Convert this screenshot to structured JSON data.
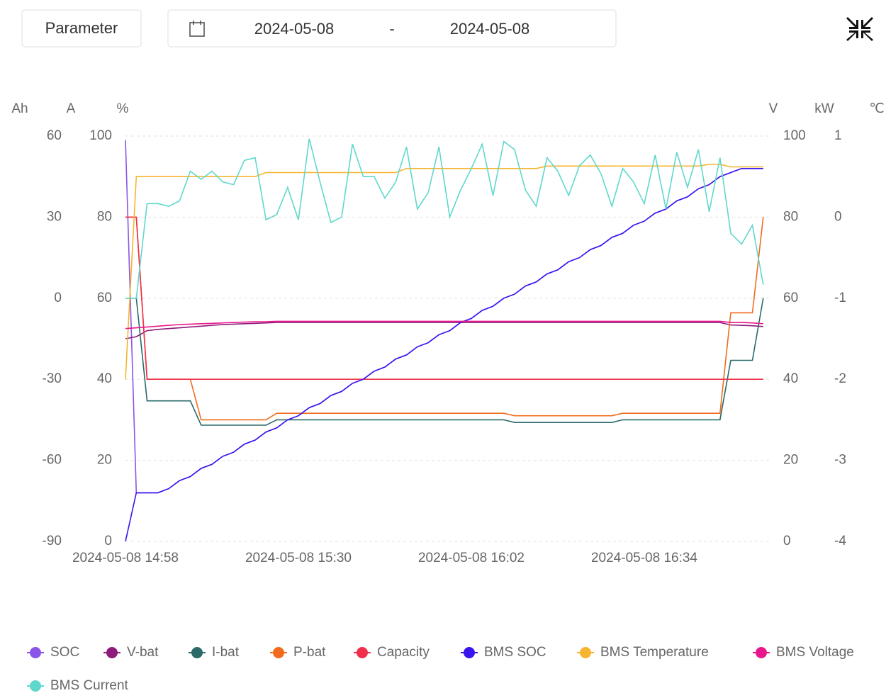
{
  "controls": {
    "button": "Parameter",
    "date_start": "2024-05-08",
    "date_separator": "-",
    "date_end": "2024-05-08"
  },
  "chart_data": {
    "type": "line",
    "categories": [
      "2024-05-08 14:58",
      null,
      null,
      null,
      null,
      null,
      null,
      null,
      null,
      null,
      null,
      null,
      null,
      null,
      null,
      null,
      "2024-05-08 15:30",
      null,
      null,
      null,
      null,
      null,
      null,
      null,
      null,
      null,
      null,
      null,
      null,
      null,
      null,
      null,
      "2024-05-08 16:02",
      null,
      null,
      null,
      null,
      null,
      null,
      null,
      null,
      null,
      null,
      null,
      null,
      null,
      null,
      null,
      "2024-05-08 16:34",
      null,
      null,
      null,
      null,
      null,
      null,
      null,
      null,
      null,
      null,
      null
    ],
    "grid": true,
    "y_axes": [
      {
        "label": "Ah",
        "ylim": [
          0,
          100
        ]
      },
      {
        "label": "A",
        "ylim": [
          -90,
          60
        ],
        "yticks": [
          60,
          30,
          0,
          -30,
          -60,
          -90
        ]
      },
      {
        "label": "%",
        "ylim": [
          0,
          100
        ],
        "yticks": [
          100,
          80,
          60,
          40,
          20,
          0
        ]
      },
      {
        "label": "V",
        "ylim": [
          0,
          100
        ],
        "yticks": [
          100,
          80,
          60,
          40,
          20,
          0
        ]
      },
      {
        "label": "kW",
        "ylim": [
          -4,
          1
        ],
        "yticks": [
          1,
          0,
          -1,
          -2,
          -3,
          -4
        ]
      },
      {
        "label": "℃",
        "ylim": [
          0,
          50
        ]
      }
    ],
    "series": [
      {
        "name": "SOC",
        "color": "#8b55e8",
        "axis": 2,
        "values": [
          99,
          12,
          12,
          12,
          13,
          15,
          16,
          18,
          19,
          21,
          22,
          24,
          25,
          27,
          28,
          30,
          31,
          33,
          34,
          36,
          37,
          39,
          40,
          42,
          43,
          45,
          46,
          48,
          49,
          51,
          52,
          54,
          55,
          57,
          58,
          60,
          61,
          63,
          64,
          66,
          67,
          69,
          70,
          72,
          73,
          75,
          76,
          78,
          79,
          81,
          82,
          84,
          85,
          87,
          88,
          90,
          91,
          92,
          92,
          92
        ]
      },
      {
        "name": "V-bat",
        "color": "#8e1a7a",
        "axis": 3,
        "values": [
          50,
          50.5,
          52,
          52.3,
          52.5,
          52.7,
          52.9,
          53.1,
          53.3,
          53.5,
          53.6,
          53.7,
          53.8,
          53.9,
          54,
          54,
          54,
          54,
          54,
          54,
          54,
          54,
          54,
          54,
          54,
          54,
          54,
          54,
          54,
          54,
          54,
          54,
          54,
          54,
          54,
          54,
          54,
          54,
          54,
          54,
          54,
          54,
          54,
          54,
          54,
          54,
          54,
          54,
          54,
          54,
          54,
          54,
          54,
          54,
          54,
          54,
          53.4,
          53.3,
          53.2,
          53.0
        ]
      },
      {
        "name": "I-bat",
        "color": "#2a6a6a",
        "axis": 1,
        "values": [
          0,
          0,
          -38,
          -38,
          -38,
          -38,
          -38,
          -47,
          -47,
          -47,
          -47,
          -47,
          -47,
          -47,
          -45,
          -45,
          -45,
          -45,
          -45,
          -45,
          -45,
          -45,
          -45,
          -45,
          -45,
          -45,
          -45,
          -45,
          -45,
          -45,
          -45,
          -45,
          -45,
          -45,
          -45,
          -45,
          -46,
          -46,
          -46,
          -46,
          -46,
          -46,
          -46,
          -46,
          -46,
          -46,
          -45,
          -45,
          -45,
          -45,
          -45,
          -45,
          -45,
          -45,
          -45,
          -45,
          -23,
          -23,
          -23,
          0
        ]
      },
      {
        "name": "P-bat",
        "color": "#f26b1d",
        "axis": 4,
        "values": [
          0,
          0,
          -2,
          -2,
          -2,
          -2,
          -2,
          -2.5,
          -2.5,
          -2.5,
          -2.5,
          -2.5,
          -2.5,
          -2.5,
          -2.42,
          -2.42,
          -2.42,
          -2.42,
          -2.42,
          -2.42,
          -2.42,
          -2.42,
          -2.42,
          -2.42,
          -2.42,
          -2.42,
          -2.42,
          -2.42,
          -2.42,
          -2.42,
          -2.42,
          -2.42,
          -2.42,
          -2.42,
          -2.42,
          -2.42,
          -2.45,
          -2.45,
          -2.45,
          -2.45,
          -2.45,
          -2.45,
          -2.45,
          -2.45,
          -2.45,
          -2.45,
          -2.42,
          -2.42,
          -2.42,
          -2.42,
          -2.42,
          -2.42,
          -2.42,
          -2.42,
          -2.42,
          -2.42,
          -1.18,
          -1.18,
          -1.18,
          0
        ]
      },
      {
        "name": "Capacity",
        "color": "#f0304a",
        "axis": 0,
        "values": [
          80,
          80,
          40,
          40,
          40,
          40,
          40,
          40,
          40,
          40,
          40,
          40,
          40,
          40,
          40,
          40,
          40,
          40,
          40,
          40,
          40,
          40,
          40,
          40,
          40,
          40,
          40,
          40,
          40,
          40,
          40,
          40,
          40,
          40,
          40,
          40,
          40,
          40,
          40,
          40,
          40,
          40,
          40,
          40,
          40,
          40,
          40,
          40,
          40,
          40,
          40,
          40,
          40,
          40,
          40,
          40,
          40,
          40,
          40,
          40
        ]
      },
      {
        "name": "BMS SOC",
        "color": "#3a14f0",
        "axis": 2,
        "values": [
          0,
          12,
          12,
          12,
          13,
          15,
          16,
          18,
          19,
          21,
          22,
          24,
          25,
          27,
          28,
          30,
          31,
          33,
          34,
          36,
          37,
          39,
          40,
          42,
          43,
          45,
          46,
          48,
          49,
          51,
          52,
          54,
          55,
          57,
          58,
          60,
          61,
          63,
          64,
          66,
          67,
          69,
          70,
          72,
          73,
          75,
          76,
          78,
          79,
          81,
          82,
          84,
          85,
          87,
          88,
          90,
          91,
          92,
          92,
          92
        ]
      },
      {
        "name": "BMS Temperature",
        "color": "#f5b52e",
        "axis": 5,
        "values": [
          20,
          45,
          45,
          45,
          45,
          45,
          45,
          45,
          45,
          45,
          45,
          45,
          45,
          45.5,
          45.5,
          45.5,
          45.5,
          45.5,
          45.5,
          45.5,
          45.5,
          45.5,
          45.5,
          45.5,
          45.5,
          45.5,
          46,
          46,
          46,
          46,
          46,
          46,
          46,
          46,
          46,
          46,
          46,
          46,
          46,
          46.3,
          46.3,
          46.3,
          46.3,
          46.3,
          46.3,
          46.3,
          46.3,
          46.3,
          46.3,
          46.3,
          46.3,
          46.3,
          46.3,
          46.3,
          46.5,
          46.5,
          46.2,
          46.2,
          46.2,
          46.2
        ]
      },
      {
        "name": "BMS Voltage",
        "color": "#e8188c",
        "axis": 3,
        "values": [
          52.5,
          52.7,
          52.9,
          53.1,
          53.3,
          53.5,
          53.6,
          53.7,
          53.8,
          53.9,
          54.0,
          54.1,
          54.2,
          54.2,
          54.3,
          54.3,
          54.3,
          54.3,
          54.3,
          54.3,
          54.3,
          54.3,
          54.3,
          54.3,
          54.3,
          54.3,
          54.3,
          54.3,
          54.3,
          54.3,
          54.3,
          54.3,
          54.3,
          54.3,
          54.3,
          54.3,
          54.3,
          54.3,
          54.3,
          54.3,
          54.3,
          54.3,
          54.3,
          54.3,
          54.3,
          54.3,
          54.3,
          54.3,
          54.3,
          54.3,
          54.3,
          54.3,
          54.3,
          54.3,
          54.3,
          54.3,
          54,
          54,
          53.9,
          53.7
        ]
      },
      {
        "name": "BMS Current",
        "color": "#5fd8cc",
        "axis": 1,
        "values": [
          0,
          0,
          35,
          35,
          34,
          36,
          47,
          44,
          47,
          43,
          42,
          51,
          52,
          29,
          31,
          41,
          29,
          59,
          43,
          28,
          30,
          57,
          45,
          45,
          37,
          43,
          56,
          33,
          39,
          56,
          30,
          40,
          48,
          57,
          38,
          58,
          55,
          40,
          34,
          52,
          47,
          38,
          49,
          53,
          46,
          34,
          48,
          43,
          35,
          53,
          33,
          54,
          41,
          55,
          32,
          52,
          24,
          20,
          27,
          5
        ]
      }
    ]
  }
}
